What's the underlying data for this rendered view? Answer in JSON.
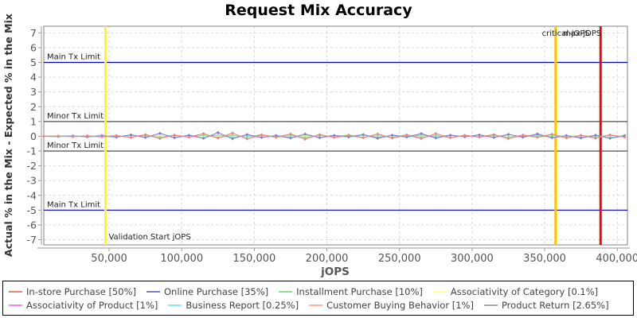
{
  "chart_data": {
    "type": "line",
    "title": "Request Mix Accuracy",
    "xlabel": "jOPS",
    "ylabel": "Actual % in the Mix - Expected % in the Mix",
    "xlim": [
      5000,
      407000
    ],
    "ylim": [
      -7.35,
      7.45
    ],
    "grid": true,
    "legend_position": "bottom",
    "x_ticks": [
      50000,
      100000,
      150000,
      200000,
      250000,
      300000,
      350000,
      400000
    ],
    "y_ticks": [
      -7,
      -6,
      -5,
      -4,
      -3,
      -2,
      -1,
      0,
      1,
      2,
      3,
      4,
      5,
      6,
      7
    ],
    "x": [
      5000,
      15000,
      25000,
      35000,
      45000,
      55000,
      65000,
      75000,
      85000,
      95000,
      105000,
      115000,
      125000,
      135000,
      145000,
      155000,
      165000,
      175000,
      185000,
      195000,
      205000,
      215000,
      225000,
      235000,
      245000,
      255000,
      265000,
      275000,
      285000,
      295000,
      305000,
      315000,
      325000,
      335000,
      345000,
      355000,
      365000,
      375000,
      385000,
      395000,
      405000
    ],
    "series": [
      {
        "name": "In-store Purchase [50%]",
        "color": "#f08080",
        "values": [
          0.0,
          0.01,
          -0.02,
          0.03,
          -0.04,
          0.05,
          -0.08,
          0.12,
          -0.15,
          0.08,
          -0.05,
          0.18,
          -0.12,
          0.22,
          -0.18,
          0.1,
          -0.06,
          0.15,
          -0.2,
          0.12,
          -0.08,
          0.05,
          -0.1,
          0.16,
          -0.12,
          0.07,
          -0.15,
          0.18,
          -0.1,
          0.06,
          -0.04,
          0.12,
          -0.16,
          0.09,
          -0.05,
          0.14,
          -0.11,
          0.07,
          -0.13,
          0.1,
          -0.06
        ]
      },
      {
        "name": "Online Purchase [35%]",
        "color": "#7b7bd0",
        "values": [
          0.0,
          -0.01,
          0.02,
          -0.03,
          0.05,
          -0.06,
          0.1,
          -0.08,
          0.2,
          -0.1,
          0.07,
          -0.14,
          0.25,
          -0.16,
          0.12,
          -0.08,
          0.05,
          -0.12,
          0.15,
          -0.1,
          0.06,
          -0.04,
          0.12,
          -0.14,
          0.08,
          -0.05,
          0.18,
          -0.12,
          0.07,
          -0.04,
          0.1,
          -0.08,
          0.13,
          -0.06,
          0.16,
          -0.1,
          0.05,
          -0.12,
          0.08,
          -0.14,
          0.04
        ]
      },
      {
        "name": "Installment Purchase [10%]",
        "color": "#8ee08e",
        "values": [
          0.0,
          0.01,
          -0.01,
          0.02,
          -0.03,
          0.04,
          -0.05,
          0.06,
          -0.07,
          0.09,
          -0.06,
          0.08,
          -0.1,
          0.07,
          -0.05,
          0.12,
          -0.08,
          0.06,
          -0.09,
          0.05,
          -0.04,
          0.1,
          -0.07,
          0.05,
          -0.08,
          0.11,
          -0.06,
          0.04,
          -0.09,
          0.07,
          -0.05,
          0.08,
          -0.06,
          0.04,
          -0.07,
          0.05,
          -0.09,
          0.06,
          -0.04,
          0.07,
          -0.05
        ]
      },
      {
        "name": "Associativity of Category [0.1%]",
        "color": "#ffff8e",
        "values": [
          0,
          0.01,
          -0.01,
          0.01,
          0,
          -0.01,
          0.01,
          -0.02,
          0.02,
          -0.01,
          0.01,
          0,
          -0.01,
          0.02,
          -0.02,
          0.01,
          -0.01,
          0,
          0.01,
          -0.01,
          0.02,
          -0.01,
          0,
          0.01,
          -0.02,
          0.01,
          -0.01,
          0.02,
          0,
          -0.01,
          0.01,
          -0.02,
          0.01,
          0,
          -0.01,
          0.01,
          -0.01,
          0.02,
          -0.01,
          0,
          0.01
        ]
      },
      {
        "name": "Associativity of Product [1%]",
        "color": "#f583f5",
        "values": [
          0,
          0.02,
          -0.02,
          0.03,
          -0.03,
          0.02,
          -0.04,
          0.05,
          -0.03,
          0.04,
          -0.05,
          0.03,
          -0.02,
          0.06,
          -0.04,
          0.03,
          -0.05,
          0.04,
          -0.03,
          0.05,
          -0.02,
          0.03,
          -0.06,
          0.04,
          -0.03,
          0.02,
          -0.04,
          0.05,
          -0.03,
          0.02,
          -0.05,
          0.03,
          -0.04,
          0.06,
          -0.02,
          0.03,
          -0.05,
          0.04,
          -0.02,
          0.03,
          -0.04
        ]
      },
      {
        "name": "Business Report [0.25%]",
        "color": "#86ebeb",
        "values": [
          0,
          -0.02,
          0.02,
          -0.03,
          0.03,
          -0.02,
          0.04,
          -0.05,
          0.03,
          -0.04,
          0.05,
          -0.03,
          0.02,
          -0.05,
          0.04,
          -0.02,
          0.05,
          -0.03,
          0.02,
          -0.04,
          0.03,
          -0.05,
          0.04,
          -0.02,
          0.03,
          -0.05,
          0.02,
          -0.04,
          0.05,
          -0.03,
          0.02,
          -0.04,
          0.03,
          -0.02,
          0.05,
          -0.03,
          0.04,
          -0.02,
          0.03,
          -0.05,
          0.02
        ]
      },
      {
        "name": "Customer Buying Behavior [1%]",
        "color": "#ffb49b",
        "values": [
          0,
          0.02,
          -0.03,
          0.02,
          -0.02,
          0.04,
          -0.03,
          0.02,
          -0.05,
          0.03,
          -0.02,
          0.04,
          -0.06,
          0.03,
          -0.02,
          0.05,
          -0.04,
          0.02,
          -0.03,
          0.06,
          -0.02,
          0.04,
          -0.03,
          0.02,
          -0.05,
          0.03,
          -0.04,
          0.02,
          -0.06,
          0.04,
          -0.02,
          0.03,
          -0.05,
          0.02,
          -0.04,
          0.03,
          -0.02,
          0.05,
          -0.03,
          0.04,
          -0.02
        ]
      },
      {
        "name": "Product Return [2.65%]",
        "color": "#a8a8a8",
        "values": [
          0,
          -0.02,
          0.03,
          -0.04,
          0.02,
          -0.05,
          0.06,
          -0.03,
          0.04,
          -0.06,
          0.05,
          -0.02,
          0.07,
          -0.05,
          0.03,
          -0.06,
          0.04,
          -0.08,
          0.05,
          -0.03,
          0.06,
          -0.04,
          0.02,
          -0.07,
          0.05,
          -0.03,
          0.06,
          -0.04,
          0.07,
          -0.02,
          0.04,
          -0.06,
          0.03,
          -0.05,
          0.07,
          -0.04,
          0.02,
          -0.06,
          0.04,
          -0.03,
          0.05
        ]
      }
    ],
    "limit_lines": [
      {
        "label": "Main Tx Limit",
        "y": 5,
        "color": "#0000cc"
      },
      {
        "label": "Minor Tx Limit",
        "y": 1,
        "color": "#4d4d4d"
      },
      {
        "label": "Minor Tx Limit",
        "y": -1,
        "color": "#4d4d4d"
      },
      {
        "label": "Main Tx Limit",
        "y": -5,
        "color": "#0000cc"
      }
    ],
    "vertical_lines": [
      {
        "label": "Validation Start jOPS",
        "x": 47500,
        "color": "#ffff00",
        "label_pos": "bottom-start"
      },
      {
        "label": "critical-jOPS",
        "x": 357500,
        "color": "#fdc500",
        "label_pos": "top-end-offset"
      },
      {
        "label": "max-jOPS",
        "x": 388500,
        "color": "#ff0000",
        "label_pos": "top-end"
      }
    ]
  },
  "legend": {
    "items": [
      {
        "label": "In-store Purchase [50%]",
        "color": "#f08080"
      },
      {
        "label": "Online Purchase [35%]",
        "color": "#7b7bd0"
      },
      {
        "label": "Installment Purchase [10%]",
        "color": "#8ee08e"
      },
      {
        "label": "Associativity of Category [0.1%]",
        "color": "#ffff8e"
      },
      {
        "label": "Associativity of Product [1%]",
        "color": "#f583f5"
      },
      {
        "label": "Business Report [0.25%]",
        "color": "#86ebeb"
      },
      {
        "label": "Customer Buying Behavior [1%]",
        "color": "#ffb49b"
      },
      {
        "label": "Product Return [2.65%]",
        "color": "#a8a8a8"
      }
    ]
  }
}
